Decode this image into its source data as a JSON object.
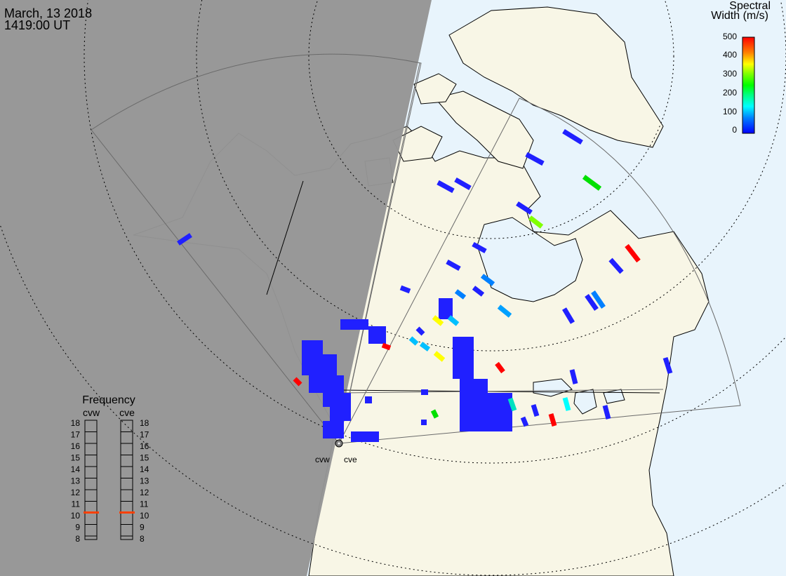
{
  "header": {
    "date": "March, 13 2018",
    "time": "1419:00 UT"
  },
  "legend": {
    "title_line1": "Spectral",
    "title_line2": "Width (m/s)",
    "ticks": [
      "500",
      "400",
      "300",
      "200",
      "100",
      "0"
    ],
    "scale_colors": [
      "#0000ff",
      "#0080ff",
      "#00ffff",
      "#00ff80",
      "#00ff00",
      "#80ff00",
      "#ffff00",
      "#ff8000",
      "#ff0000"
    ]
  },
  "radars": {
    "west_label": "cvw",
    "east_label": "cve"
  },
  "frequency": {
    "title": "Frequency",
    "col1_label": "cvw",
    "col2_label": "cve",
    "scale": [
      "18",
      "17",
      "16",
      "15",
      "14",
      "13",
      "12",
      "11",
      "10",
      "9",
      "8"
    ],
    "cvw_value": 10.5,
    "cve_value": 10.5,
    "marker_color": "#ff4000"
  },
  "colors": {
    "night": "#959595",
    "land": "#f8f6e6",
    "ocean": "#e8f4fc",
    "scatter": "#2020ff"
  }
}
